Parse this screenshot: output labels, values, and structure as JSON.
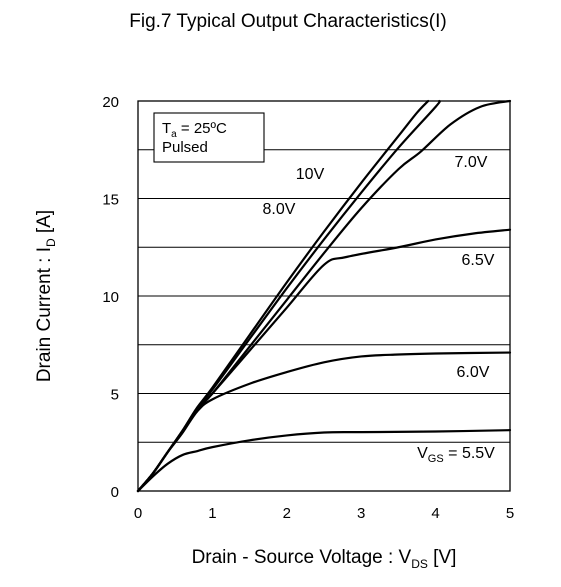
{
  "chart_data": {
    "type": "line",
    "title": "Fig.7 Typical Output Characteristics(I)",
    "xlabel": {
      "main": "Drain - Source Voltage : V",
      "sub": "DS",
      "tail": " [V]"
    },
    "ylabel": {
      "main": "Drain Current : I",
      "sub": "D",
      "tail": " [A]"
    },
    "xlim": [
      0,
      5
    ],
    "ylim": [
      0,
      20
    ],
    "x_ticks": [
      "0",
      "1",
      "2",
      "3",
      "4",
      "5"
    ],
    "y_ticks": [
      "0",
      "5",
      "10",
      "15",
      "20"
    ],
    "grid": "horizontal",
    "conditions": {
      "temp_main": "T",
      "temp_sub": "a",
      "temp_tail": " = 25ºC",
      "mode": "Pulsed"
    },
    "series": [
      {
        "name": "10V",
        "points": [
          [
            0,
            0
          ],
          [
            0.2,
            0.9
          ],
          [
            0.4,
            2.0
          ],
          [
            0.6,
            3.1
          ],
          [
            0.8,
            4.3
          ],
          [
            1.0,
            5.3
          ],
          [
            1.5,
            8.0
          ],
          [
            2.0,
            10.7
          ],
          [
            2.5,
            13.3
          ],
          [
            3.0,
            15.8
          ],
          [
            3.5,
            18.2
          ],
          [
            3.75,
            19.4
          ],
          [
            3.9,
            20.0
          ]
        ],
        "label": {
          "parts": [
            {
              "text": "10V"
            }
          ]
        }
      },
      {
        "name": "8.0V",
        "points": [
          [
            0,
            0
          ],
          [
            0.2,
            0.9
          ],
          [
            0.4,
            2.0
          ],
          [
            0.6,
            3.1
          ],
          [
            0.8,
            4.3
          ],
          [
            1.0,
            5.2
          ],
          [
            1.5,
            7.8
          ],
          [
            2.0,
            10.4
          ],
          [
            2.5,
            12.9
          ],
          [
            3.0,
            15.3
          ],
          [
            3.5,
            17.6
          ],
          [
            4.0,
            19.7
          ],
          [
            4.05,
            20.0
          ]
        ],
        "label": {
          "parts": [
            {
              "text": "8.0V"
            }
          ]
        }
      },
      {
        "name": "7.0V",
        "points": [
          [
            0,
            0
          ],
          [
            0.2,
            0.9
          ],
          [
            0.4,
            2.0
          ],
          [
            0.6,
            3.1
          ],
          [
            0.8,
            4.2
          ],
          [
            1.0,
            5.0
          ],
          [
            1.5,
            7.4
          ],
          [
            2.0,
            9.8
          ],
          [
            2.5,
            12.2
          ],
          [
            3.0,
            14.5
          ],
          [
            3.5,
            16.5
          ],
          [
            3.8,
            17.4
          ],
          [
            4.2,
            18.8
          ],
          [
            4.6,
            19.7
          ],
          [
            5.0,
            20.0
          ]
        ],
        "label": {
          "parts": [
            {
              "text": "7.0V"
            }
          ]
        }
      },
      {
        "name": "6.5V",
        "points": [
          [
            0,
            0
          ],
          [
            0.2,
            0.9
          ],
          [
            0.4,
            2.0
          ],
          [
            0.6,
            3.0
          ],
          [
            0.8,
            4.2
          ],
          [
            1.0,
            5.0
          ],
          [
            1.5,
            7.2
          ],
          [
            2.0,
            9.4
          ],
          [
            2.5,
            11.6
          ],
          [
            2.8,
            12.0
          ],
          [
            3.5,
            12.5
          ],
          [
            4.0,
            12.9
          ],
          [
            4.5,
            13.2
          ],
          [
            5.0,
            13.4
          ]
        ],
        "label": {
          "parts": [
            {
              "text": "6.5V"
            }
          ]
        }
      },
      {
        "name": "6.0V",
        "points": [
          [
            0,
            0
          ],
          [
            0.2,
            0.9
          ],
          [
            0.4,
            2.0
          ],
          [
            0.6,
            3.0
          ],
          [
            0.8,
            4.1
          ],
          [
            1.0,
            4.7
          ],
          [
            1.5,
            5.5
          ],
          [
            2.0,
            6.1
          ],
          [
            2.5,
            6.6
          ],
          [
            3.0,
            6.9
          ],
          [
            3.5,
            7.0
          ],
          [
            4.0,
            7.05
          ],
          [
            5.0,
            7.1
          ]
        ],
        "label": {
          "parts": [
            {
              "text": "6.0V"
            }
          ]
        }
      },
      {
        "name": "VGS = 5.5V",
        "points": [
          [
            0,
            0
          ],
          [
            0.2,
            0.75
          ],
          [
            0.4,
            1.4
          ],
          [
            0.6,
            1.85
          ],
          [
            0.8,
            2.05
          ],
          [
            1.0,
            2.25
          ],
          [
            1.5,
            2.6
          ],
          [
            2.0,
            2.85
          ],
          [
            2.5,
            3.0
          ],
          [
            3.0,
            3.02
          ],
          [
            4.0,
            3.05
          ],
          [
            5.0,
            3.12
          ]
        ],
        "label": {
          "parts": [
            {
              "text": "V"
            },
            {
              "text": "GS",
              "sub": true
            },
            {
              "text": " = 5.5V"
            }
          ]
        }
      }
    ]
  }
}
